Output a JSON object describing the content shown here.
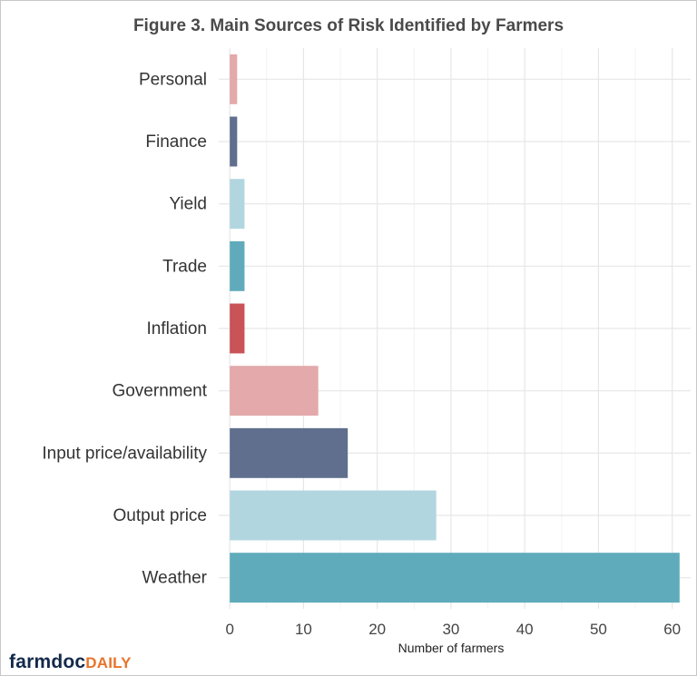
{
  "chart_data": {
    "type": "bar",
    "orientation": "horizontal",
    "title": "Figure 3. Main Sources of Risk Identified by Farmers",
    "xlabel": "Number of farmers",
    "ylabel": "",
    "categories": [
      "Personal",
      "Finance",
      "Yield",
      "Trade",
      "Inflation",
      "Government",
      "Input price/availability",
      "Output price",
      "Weather"
    ],
    "values": [
      1,
      1,
      2,
      2,
      2,
      12,
      16,
      28,
      61
    ],
    "colors": [
      "#e3a9ab",
      "#5f6f8d",
      "#b2d6e0",
      "#5fabbc",
      "#c95357",
      "#e3a9ab",
      "#5f6f8d",
      "#b2d6e0",
      "#5fabbc"
    ],
    "xlim": [
      -1.5,
      62.5
    ],
    "xticks": [
      0,
      10,
      20,
      30,
      40,
      50,
      60
    ],
    "grid": true,
    "legend": "none"
  },
  "branding": {
    "logo_part1": "farmdoc",
    "logo_part2": "DAILY"
  }
}
